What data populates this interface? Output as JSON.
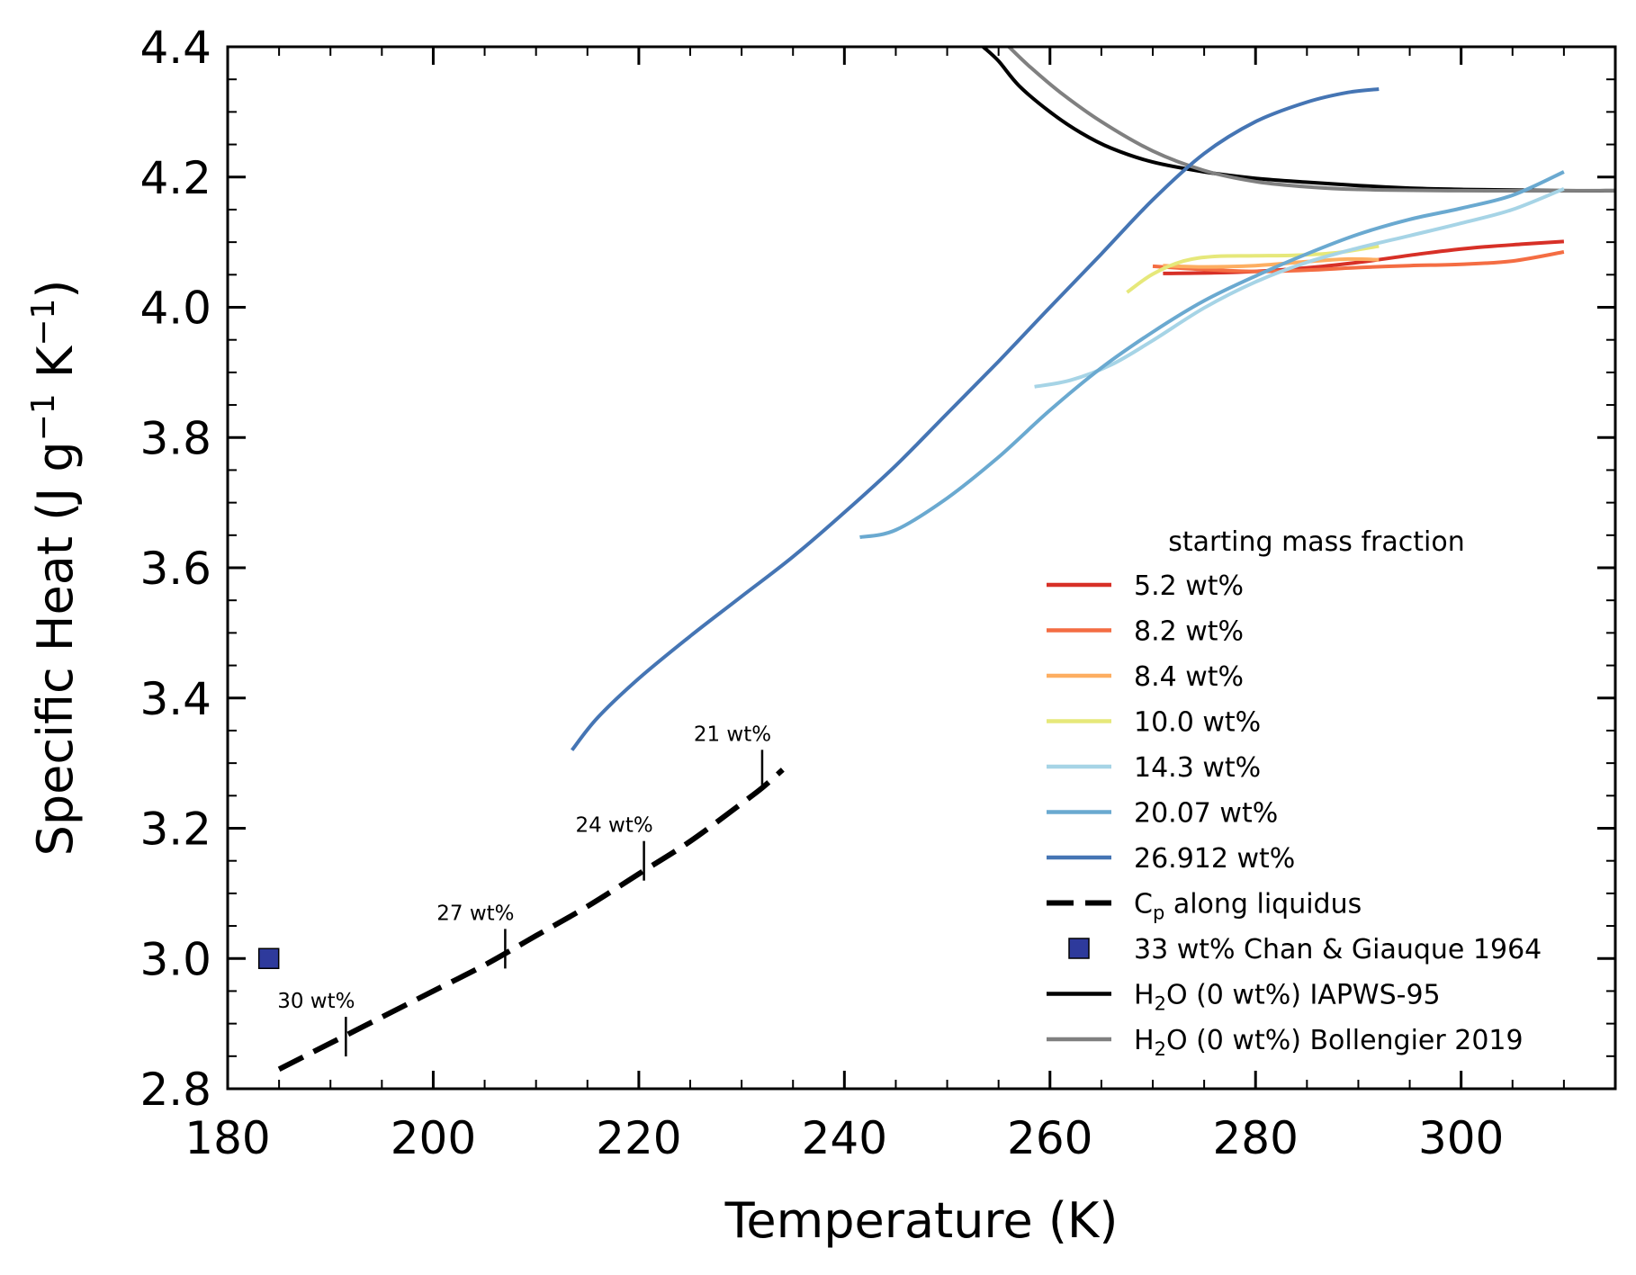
{
  "chart_data": {
    "type": "line",
    "xlabel": "Temperature (K)",
    "ylabel": "Specific Heat (J g⁻¹ K⁻¹)",
    "ylabel_parts": {
      "main": "Specific Heat (J g",
      "sup1": "−1",
      "mid": " K",
      "sup2": "−1",
      "end": ")"
    },
    "xlim": [
      180,
      315
    ],
    "ylim": [
      2.8,
      4.4
    ],
    "xticks": [
      180,
      200,
      220,
      240,
      260,
      280,
      300
    ],
    "xtick_labels": [
      "180",
      "200",
      "220",
      "240",
      "260",
      "280",
      "300"
    ],
    "yticks": [
      2.8,
      3.0,
      3.2,
      3.4,
      3.6,
      3.8,
      4.0,
      4.2,
      4.4
    ],
    "ytick_labels": [
      "2.8",
      "3.0",
      "3.2",
      "3.4",
      "3.6",
      "3.8",
      "4.0",
      "4.2",
      "4.4"
    ],
    "grid": false,
    "legend": {
      "title": "starting mass fraction",
      "placement": "lower-right",
      "entries": [
        {
          "label": "5.2 wt%",
          "series": "5.2 wt%"
        },
        {
          "label": "8.2 wt%",
          "series": "8.2 wt%"
        },
        {
          "label": "8.4 wt%",
          "series": "8.4 wt%"
        },
        {
          "label": "10.0 wt%",
          "series": "10.0 wt%"
        },
        {
          "label": "14.3 wt%",
          "series": "14.3 wt%"
        },
        {
          "label": "20.07 wt%",
          "series": "20.07 wt%"
        },
        {
          "label": "26.912 wt%",
          "series": "26.912 wt%"
        },
        {
          "label_main": "C",
          "label_sub": "p",
          "label_rest": " along liquidus",
          "series": "liquidus"
        },
        {
          "label": "33 wt% Chan & Giauque 1964",
          "series": "Chan & Giauque 1964"
        },
        {
          "label_main": "H",
          "label_sub": "2",
          "label_rest": "O (0 wt%) IAPWS-95",
          "series": "IAPWS-95"
        },
        {
          "label_main": "H",
          "label_sub": "2",
          "label_rest": "O (0 wt%) Bollengier 2019",
          "series": "Bollengier 2019"
        }
      ]
    },
    "series": [
      {
        "name": "5.2 wt%",
        "color": "#d73027",
        "style": "solid",
        "points": [
          [
            271,
            4.052
          ],
          [
            276,
            4.053
          ],
          [
            281,
            4.056
          ],
          [
            286,
            4.062
          ],
          [
            291,
            4.071
          ],
          [
            296,
            4.082
          ],
          [
            301,
            4.091
          ],
          [
            306,
            4.097
          ],
          [
            310,
            4.101
          ]
        ]
      },
      {
        "name": "8.2 wt%",
        "color": "#f46d43",
        "style": "solid",
        "points": [
          [
            270,
            4.063
          ],
          [
            275,
            4.058
          ],
          [
            280,
            4.055
          ],
          [
            285,
            4.057
          ],
          [
            290,
            4.061
          ],
          [
            295,
            4.064
          ],
          [
            300,
            4.066
          ],
          [
            305,
            4.071
          ],
          [
            310,
            4.085
          ]
        ]
      },
      {
        "name": "8.4 wt%",
        "color": "#fdae61",
        "style": "solid",
        "points": [
          [
            271,
            4.064
          ],
          [
            275,
            4.062
          ],
          [
            280,
            4.064
          ],
          [
            285,
            4.07
          ],
          [
            289,
            4.074
          ],
          [
            292,
            4.073
          ]
        ]
      },
      {
        "name": "10.0 wt%",
        "color": "#e6e87a",
        "style": "solid",
        "points": [
          [
            267.5,
            4.023
          ],
          [
            270,
            4.051
          ],
          [
            273,
            4.071
          ],
          [
            276,
            4.078
          ],
          [
            280,
            4.079
          ],
          [
            284,
            4.08
          ],
          [
            288,
            4.084
          ],
          [
            292,
            4.094
          ]
        ]
      },
      {
        "name": "14.3 wt%",
        "color": "#a6d4e6",
        "style": "solid",
        "points": [
          [
            258.5,
            3.878
          ],
          [
            262,
            3.888
          ],
          [
            266,
            3.912
          ],
          [
            270,
            3.949
          ],
          [
            275,
            3.999
          ],
          [
            280,
            4.039
          ],
          [
            285,
            4.069
          ],
          [
            290,
            4.091
          ],
          [
            295,
            4.11
          ],
          [
            300,
            4.129
          ],
          [
            305,
            4.15
          ],
          [
            310,
            4.182
          ]
        ]
      },
      {
        "name": "20.07 wt%",
        "color": "#6aa9d0",
        "style": "solid",
        "points": [
          [
            241.5,
            3.647
          ],
          [
            245,
            3.658
          ],
          [
            250,
            3.707
          ],
          [
            255,
            3.77
          ],
          [
            260,
            3.842
          ],
          [
            265,
            3.907
          ],
          [
            270,
            3.962
          ],
          [
            275,
            4.01
          ],
          [
            280,
            4.048
          ],
          [
            285,
            4.082
          ],
          [
            290,
            4.112
          ],
          [
            295,
            4.135
          ],
          [
            300,
            4.152
          ],
          [
            305,
            4.172
          ],
          [
            310,
            4.208
          ]
        ]
      },
      {
        "name": "26.912 wt%",
        "color": "#4575b4",
        "style": "solid",
        "points": [
          [
            213.5,
            3.32
          ],
          [
            216,
            3.37
          ],
          [
            220,
            3.43
          ],
          [
            225,
            3.495
          ],
          [
            230,
            3.556
          ],
          [
            235,
            3.617
          ],
          [
            240,
            3.685
          ],
          [
            245,
            3.757
          ],
          [
            250,
            3.837
          ],
          [
            255,
            3.917
          ],
          [
            260,
            4.0
          ],
          [
            265,
            4.082
          ],
          [
            270,
            4.165
          ],
          [
            275,
            4.236
          ],
          [
            280,
            4.285
          ],
          [
            285,
            4.315
          ],
          [
            289,
            4.33
          ],
          [
            292,
            4.335
          ]
        ]
      },
      {
        "name": "liquidus",
        "color": "#000000",
        "style": "dashed",
        "points": [
          [
            185,
            2.83
          ],
          [
            190,
            2.87
          ],
          [
            195,
            2.91
          ],
          [
            200,
            2.95
          ],
          [
            205,
            2.99
          ],
          [
            210,
            3.035
          ],
          [
            215,
            3.08
          ],
          [
            220,
            3.13
          ],
          [
            225,
            3.18
          ],
          [
            230,
            3.238
          ],
          [
            232,
            3.262
          ],
          [
            234,
            3.29
          ]
        ]
      },
      {
        "name": "IAPWS-95",
        "color": "#000000",
        "style": "solid",
        "points": [
          [
            253.5,
            4.4
          ],
          [
            255,
            4.378
          ],
          [
            257,
            4.34
          ],
          [
            260,
            4.3
          ],
          [
            263,
            4.268
          ],
          [
            266,
            4.244
          ],
          [
            270,
            4.223
          ],
          [
            275,
            4.208
          ],
          [
            280,
            4.198
          ],
          [
            285,
            4.192
          ],
          [
            290,
            4.187
          ],
          [
            295,
            4.183
          ],
          [
            300,
            4.181
          ],
          [
            305,
            4.18
          ],
          [
            310,
            4.179
          ],
          [
            315,
            4.179
          ]
        ]
      },
      {
        "name": "Bollengier 2019",
        "color": "#808080",
        "style": "solid",
        "points": [
          [
            256,
            4.4
          ],
          [
            258,
            4.37
          ],
          [
            261,
            4.33
          ],
          [
            265,
            4.285
          ],
          [
            270,
            4.24
          ],
          [
            275,
            4.21
          ],
          [
            280,
            4.193
          ],
          [
            285,
            4.185
          ],
          [
            290,
            4.181
          ],
          [
            300,
            4.179
          ],
          [
            315,
            4.179
          ]
        ]
      }
    ],
    "markers": [
      {
        "name": "Chan & Giauque 1964",
        "x": 184,
        "y": 3.0,
        "shape": "square",
        "color": "#2e3a9c"
      }
    ],
    "annotations": [
      {
        "text": "30 wt%",
        "x": 191.5,
        "y": 2.88
      },
      {
        "text": "27 wt%",
        "x": 207,
        "y": 3.015
      },
      {
        "text": "24 wt%",
        "x": 220.5,
        "y": 3.15
      },
      {
        "text": "21 wt%",
        "x": 232,
        "y": 3.29
      }
    ]
  }
}
